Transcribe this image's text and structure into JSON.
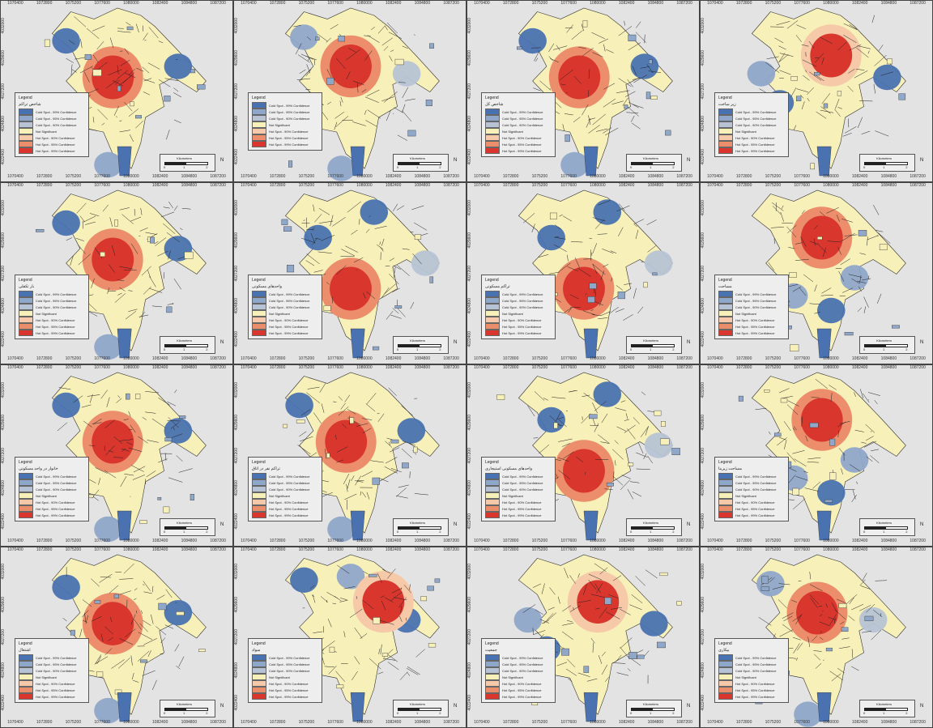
{
  "figure": {
    "columns": 4,
    "rows": 4
  },
  "colors": {
    "cold_99": "#4a72b0",
    "cold_95": "#8fa7c9",
    "cold_90": "#b7c3d4",
    "not_sig": "#f7f0b8",
    "hot_90": "#f6c9a8",
    "hot_95": "#ec8e6c",
    "hot_99": "#d9362e",
    "background": "#e3e3e3"
  },
  "axis_ticks": {
    "top": [
      "1070400",
      "1072800",
      "1075200",
      "1077600",
      "1080000",
      "1082400",
      "1084800",
      "1087200"
    ],
    "left": [
      "4032000",
      "4029600",
      "4027200",
      "4024800",
      "4022400"
    ]
  },
  "panels": [
    {
      "legend_title": "Legend",
      "legend_subtitle": "ﺷﺎﺧﺺ ﺗﺮﺍﮐﻢ",
      "scale_label": "Kilometers",
      "scale_max": "2",
      "style": "a"
    },
    {
      "legend_title": "Legend",
      "legend_subtitle": "",
      "scale_label": "Kilometers",
      "scale_max": "2",
      "style": "b"
    },
    {
      "legend_title": "Legend",
      "legend_subtitle": "ﺷﺎﺧﺺ ﮐﻞ",
      "scale_label": "Kilometers",
      "scale_max": "2",
      "style": "a"
    },
    {
      "legend_title": "Legend",
      "legend_subtitle": "ﺯﻳﺮ ﺳﺎﺧﺖ",
      "scale_label": "Kilometers",
      "scale_max": "2",
      "style": "c"
    },
    {
      "legend_title": "Legend",
      "legend_subtitle": "ﺑﺎﺭ ﺗﮑﻔﻠﯽ",
      "scale_label": "Kilometers",
      "scale_max": "2",
      "style": "a"
    },
    {
      "legend_title": "Legend",
      "legend_subtitle": "ﻭﺍﺣﺪﻫﺎﯼ ﻣﺴﮑﻮﻧﯽ",
      "scale_label": "Kilometers",
      "scale_max": "2",
      "style": "d"
    },
    {
      "legend_title": "Legend",
      "legend_subtitle": "ﺗﺮﺍﮐﻢ ﻣﺴﮑﻮﻧﯽ",
      "scale_label": "Kilometers",
      "scale_max": "2",
      "style": "d"
    },
    {
      "legend_title": "Legend",
      "legend_subtitle": "ﻣﺴﺎﺣﺖ",
      "scale_label": "Kilometers",
      "scale_max": "2",
      "style": "e"
    },
    {
      "legend_title": "Legend",
      "legend_subtitle": "ﺧﺎﻧﻮﺍﺭ ﺩﺭ ﻭﺍﺣﺪ ﻣﺴﮑﻮﻧﯽ",
      "scale_label": "Kilometers",
      "scale_max": "2",
      "style": "a"
    },
    {
      "legend_title": "Legend",
      "legend_subtitle": "ﺗﺮﺍﮐﻢ ﻧﻔﺮ ﺩﺭ ﺍﺗﺎﻕ",
      "scale_label": "Kilometers",
      "scale_max": "2",
      "style": "a"
    },
    {
      "legend_title": "Legend",
      "legend_subtitle": "ﻭﺍﺣﺪﻫﺎﯼ ﻣﺴﮑﻮﻧﯽ ﺍﺳﺘﻴﺠﺎﺭﯼ",
      "scale_label": "Kilometers",
      "scale_max": "2",
      "style": "d"
    },
    {
      "legend_title": "Legend",
      "legend_subtitle": "ﻣﺴﺎﺣﺖ ﺯﻳﺮﺑﻨﺎ",
      "scale_label": "Kilometers",
      "scale_max": "2",
      "style": "e"
    },
    {
      "legend_title": "Legend",
      "legend_subtitle": "ﺍﺷﺘﻐﺎﻝ",
      "scale_label": "Kilometers",
      "scale_max": "2",
      "style": "a"
    },
    {
      "legend_title": "Legend",
      "legend_subtitle": "ﺳﻮﺍﺩ",
      "scale_label": "Kilometers",
      "scale_max": "2",
      "style": "f"
    },
    {
      "legend_title": "Legend",
      "legend_subtitle": "ﺟﻤﻌﻴﺖ",
      "scale_label": "Kilometers",
      "scale_max": "2",
      "style": "c"
    },
    {
      "legend_title": "Legend",
      "legend_subtitle": "ﺑﻴﮑﺎﺭﯼ",
      "scale_label": "Kilometers",
      "scale_max": "2",
      "style": "b"
    }
  ],
  "legend_classes": [
    {
      "label": "Cold Spot - 99% Confidence",
      "color_key": "cold_99"
    },
    {
      "label": "Cold Spot - 95% Confidence",
      "color_key": "cold_95"
    },
    {
      "label": "Cold Spot - 90% Confidence",
      "color_key": "cold_90"
    },
    {
      "label": "Not Significant",
      "color_key": "not_sig"
    },
    {
      "label": "Hot Spot - 90% Confidence",
      "color_key": "hot_90"
    },
    {
      "label": "Hot Spot - 95% Confidence",
      "color_key": "hot_95"
    },
    {
      "label": "Hot Spot - 99% Confidence",
      "color_key": "hot_99"
    }
  ],
  "north_arrow": "N",
  "scale_min": "0",
  "scale_mid": "1"
}
